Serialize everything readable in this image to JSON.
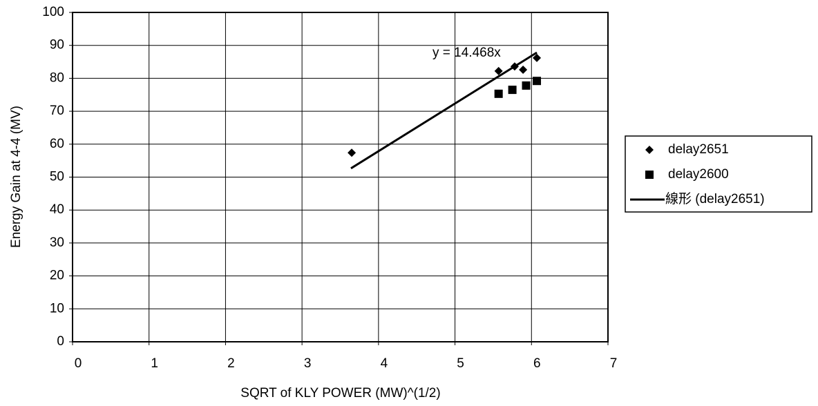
{
  "chart_data": {
    "type": "scatter",
    "xlabel": "SQRT of KLY POWER  (MW)^(1/2)",
    "ylabel": "Energy Gain at 4-4 (MV)",
    "xlim": [
      0,
      7
    ],
    "xticks": [
      0,
      1,
      2,
      3,
      4,
      5,
      6,
      7
    ],
    "ylim": [
      0,
      100
    ],
    "yticks": [
      0,
      10,
      20,
      30,
      40,
      50,
      60,
      70,
      80,
      90,
      100
    ],
    "grid": true,
    "legend": "right",
    "series": [
      {
        "name": "delay2651",
        "marker": "diamond",
        "color": "#000000",
        "x": [
          3.65,
          5.57,
          5.78,
          5.89,
          6.07
        ],
        "values": [
          57.4,
          82.2,
          83.6,
          82.6,
          86.2
        ]
      },
      {
        "name": "delay2600",
        "marker": "square",
        "color": "#000000",
        "x": [
          5.57,
          5.75,
          5.93,
          6.07
        ],
        "values": [
          75.3,
          76.5,
          77.8,
          79.2
        ]
      }
    ],
    "trendline": {
      "name": "線形 (delay2651)",
      "label": "y = 14.468x",
      "slope": 14.468,
      "x": [
        3.64,
        6.07
      ],
      "color": "#000000"
    }
  }
}
